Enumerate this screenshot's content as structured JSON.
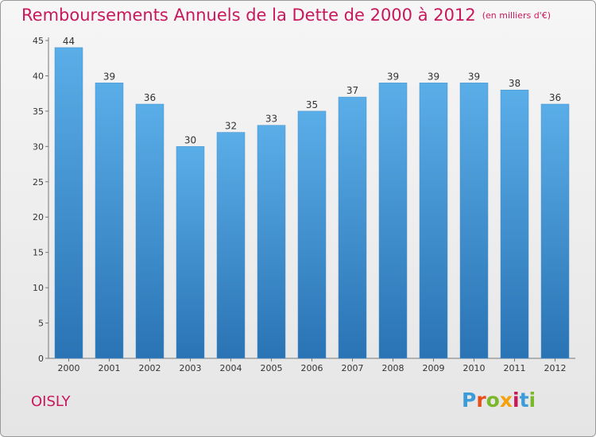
{
  "header": {
    "title": "Remboursements Annuels de la Dette de 2000 à 2012",
    "subtitle": "(en milliers d'€)"
  },
  "footer": {
    "city": "OISLY",
    "logo": {
      "text": "Proxiti",
      "colors": [
        "#3b9cd8",
        "#e84e1b",
        "#7ab829",
        "#f4a10c",
        "#c8185c",
        "#3b9cd8",
        "#7ab829"
      ]
    }
  },
  "colors": {
    "accent": "#c8185c",
    "bar_top": "#5aaee8",
    "bar_bottom": "#2a73b4"
  },
  "chart_data": {
    "type": "bar",
    "title": "Remboursements Annuels de la Dette de 2000 à 2012",
    "subtitle": "(en milliers d'€)",
    "xlabel": "",
    "ylabel": "",
    "categories": [
      "2000",
      "2001",
      "2002",
      "2003",
      "2004",
      "2005",
      "2006",
      "2007",
      "2008",
      "2009",
      "2010",
      "2011",
      "2012"
    ],
    "values": [
      44,
      39,
      36,
      30,
      32,
      33,
      35,
      37,
      39,
      39,
      39,
      38,
      36
    ],
    "ylim": [
      0,
      45
    ],
    "yticks": [
      0,
      5,
      10,
      15,
      20,
      25,
      30,
      35,
      40,
      45
    ],
    "grid": false,
    "data_labels": true
  }
}
